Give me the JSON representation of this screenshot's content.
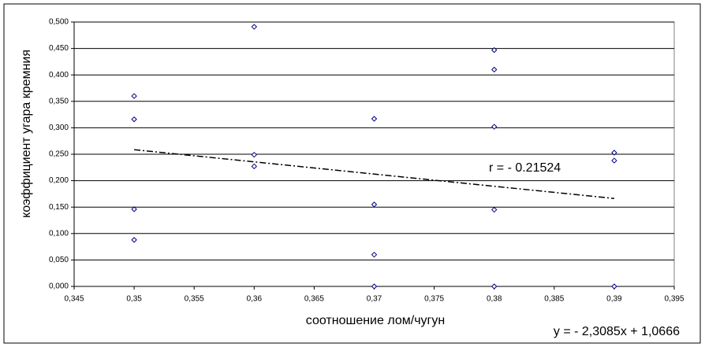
{
  "chart_data": {
    "type": "scatter",
    "x": [
      0.35,
      0.35,
      0.35,
      0.35,
      0.36,
      0.36,
      0.36,
      0.37,
      0.37,
      0.37,
      0.37,
      0.38,
      0.38,
      0.38,
      0.38,
      0.38,
      0.39,
      0.39,
      0.39
    ],
    "values": [
      0.36,
      0.316,
      0.146,
      0.088,
      0.491,
      0.249,
      0.227,
      0.317,
      0.155,
      0.06,
      0,
      0.447,
      0.41,
      0.302,
      0.145,
      0,
      0.253,
      0.238,
      0
    ],
    "color": "#000080",
    "x_label": "соотношение лом/чугун",
    "y_label": "коэффициент угара кремния",
    "xlim": [
      0.345,
      0.395
    ],
    "ylim": [
      0,
      0.5
    ],
    "xticks": [
      {
        "value": 0.345,
        "label": "0,345"
      },
      {
        "value": 0.35,
        "label": "0,35"
      },
      {
        "value": 0.355,
        "label": "0,355"
      },
      {
        "value": 0.36,
        "label": "0,36"
      },
      {
        "value": 0.365,
        "label": "0,365"
      },
      {
        "value": 0.37,
        "label": "0,37"
      },
      {
        "value": 0.375,
        "label": "0,375"
      },
      {
        "value": 0.38,
        "label": "0,38"
      },
      {
        "value": 0.385,
        "label": "0,385"
      },
      {
        "value": 0.39,
        "label": "0,39"
      },
      {
        "value": 0.395,
        "label": "0,395"
      }
    ],
    "yticks": [
      {
        "value": 0,
        "label": "0,000"
      },
      {
        "value": 0.05,
        "label": "0,050"
      },
      {
        "value": 0.1,
        "label": "0,100"
      },
      {
        "value": 0.15,
        "label": "0,150"
      },
      {
        "value": 0.2,
        "label": "0,200"
      },
      {
        "value": 0.25,
        "label": "0,250"
      },
      {
        "value": 0.3,
        "label": "0,300"
      },
      {
        "value": 0.35,
        "label": "0,350"
      },
      {
        "value": 0.4,
        "label": "0,400"
      },
      {
        "value": 0.45,
        "label": "0,450"
      },
      {
        "value": 0.5,
        "label": "0,500"
      }
    ],
    "grid": true,
    "trendline": {
      "slope": -2.3085,
      "intercept": 1.0666,
      "label": "y = - 2,3085x + 1,0666"
    },
    "annotation": "r = - 0.21524"
  }
}
